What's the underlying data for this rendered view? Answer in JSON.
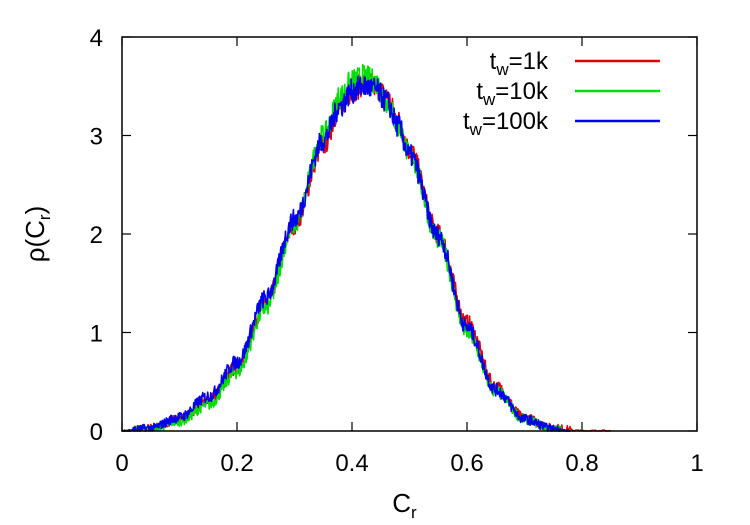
{
  "chart_data": {
    "type": "line",
    "xlabel": {
      "main": "C",
      "sub": "r"
    },
    "ylabel": {
      "pre": "ρ(C",
      "sub": "r",
      "post": ")"
    },
    "xlim": [
      0,
      1
    ],
    "ylim": [
      0,
      4
    ],
    "x_ticks": [
      "0",
      "0.2",
      "0.4",
      "0.6",
      "0.8",
      "1"
    ],
    "x_tick_values": [
      0,
      0.2,
      0.4,
      0.6,
      0.8,
      1
    ],
    "y_ticks": [
      "0",
      "1",
      "2",
      "3",
      "4"
    ],
    "y_tick_values": [
      0,
      1,
      2,
      3,
      4
    ],
    "grid": false,
    "legend_position": "top-right",
    "series": [
      {
        "legend": {
          "main": "t",
          "sub": "w",
          "rest": "=1k"
        },
        "color": "#e00000",
        "x": [
          0.0,
          0.05,
          0.1,
          0.15,
          0.2,
          0.25,
          0.3,
          0.35,
          0.38,
          0.4,
          0.42,
          0.44,
          0.46,
          0.48,
          0.5,
          0.55,
          0.6,
          0.65,
          0.7,
          0.75,
          0.8,
          0.85
        ],
        "y": [
          0.0,
          0.03,
          0.12,
          0.3,
          0.65,
          1.3,
          2.1,
          2.9,
          3.3,
          3.45,
          3.52,
          3.5,
          3.4,
          3.15,
          2.85,
          2.0,
          1.1,
          0.45,
          0.13,
          0.03,
          0.0,
          0.0
        ]
      },
      {
        "legend": {
          "main": "t",
          "sub": "w",
          "rest": "=10k"
        },
        "color": "#00dd00",
        "x": [
          0.0,
          0.05,
          0.1,
          0.15,
          0.2,
          0.25,
          0.3,
          0.35,
          0.38,
          0.4,
          0.42,
          0.44,
          0.46,
          0.48,
          0.5,
          0.55,
          0.6,
          0.65,
          0.7,
          0.75,
          0.78
        ],
        "y": [
          0.0,
          0.02,
          0.1,
          0.27,
          0.6,
          1.25,
          2.1,
          3.0,
          3.4,
          3.55,
          3.6,
          3.55,
          3.35,
          3.1,
          2.8,
          1.95,
          1.0,
          0.4,
          0.12,
          0.02,
          0.0
        ]
      },
      {
        "legend": {
          "main": "t",
          "sub": "w",
          "rest": "=100k"
        },
        "color": "#0000ee",
        "x": [
          0.0,
          0.05,
          0.1,
          0.15,
          0.2,
          0.25,
          0.3,
          0.35,
          0.38,
          0.4,
          0.42,
          0.44,
          0.46,
          0.48,
          0.5,
          0.55,
          0.6,
          0.65,
          0.7,
          0.75,
          0.78
        ],
        "y": [
          0.0,
          0.03,
          0.14,
          0.35,
          0.7,
          1.35,
          2.15,
          2.95,
          3.3,
          3.45,
          3.5,
          3.47,
          3.35,
          3.1,
          2.8,
          1.98,
          1.05,
          0.42,
          0.12,
          0.02,
          0.0
        ]
      }
    ]
  }
}
